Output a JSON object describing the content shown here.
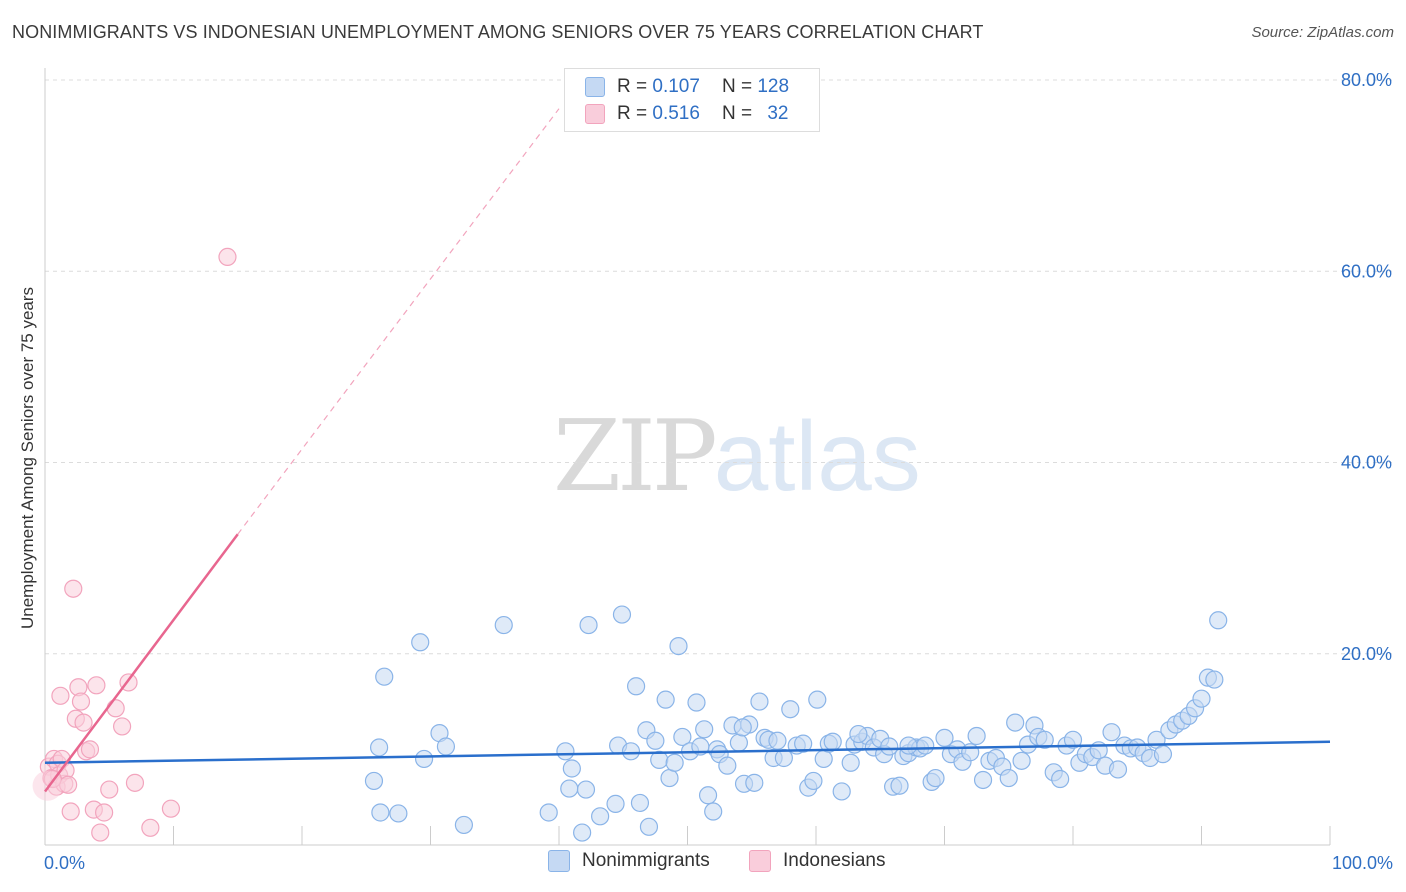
{
  "chart_data": {
    "type": "scatter",
    "title": "NONIMMIGRANTS VS INDONESIAN UNEMPLOYMENT AMONG SENIORS OVER 75 YEARS CORRELATION CHART",
    "source": "Source: ZipAtlas.com",
    "xlabel": "",
    "ylabel": "Unemployment Among Seniors over 75 years",
    "xlim": [
      0,
      100
    ],
    "ylim": [
      0,
      80
    ],
    "x_tick_labels": [
      {
        "value": 0,
        "label": "0.0%"
      },
      {
        "value": 100,
        "label": "100.0%"
      }
    ],
    "y_tick_labels": [
      {
        "value": 20,
        "label": "20.0%"
      },
      {
        "value": 40,
        "label": "40.0%"
      },
      {
        "value": 60,
        "label": "60.0%"
      },
      {
        "value": 80,
        "label": "80.0%"
      }
    ],
    "grid": "horizontal dashed",
    "watermark": {
      "part1": "ZIP",
      "part2": "atlas"
    },
    "legend": {
      "items": [
        {
          "r_label": "R =",
          "r_value": "0.107",
          "n_label": "N =",
          "n_value": "128"
        },
        {
          "r_label": "R =",
          "r_value": "0.516",
          "n_label": "N =",
          "n_value": "32"
        }
      ]
    },
    "series": [
      {
        "name": "Nonimmigrants",
        "color": "#8ab4e8",
        "fill": "#c5d9f3",
        "line_color": "#2a6fcc",
        "trend": {
          "x0": 0,
          "y0": 8.6,
          "x1": 100,
          "y1": 10.8
        },
        "points": [
          [
            25.6,
            6.7
          ],
          [
            26.0,
            10.2
          ],
          [
            26.1,
            3.4
          ],
          [
            26.4,
            17.6
          ],
          [
            27.5,
            3.3
          ],
          [
            29.2,
            21.2
          ],
          [
            29.5,
            9.0
          ],
          [
            30.7,
            11.7
          ],
          [
            31.2,
            10.3
          ],
          [
            32.6,
            2.1
          ],
          [
            35.7,
            23.0
          ],
          [
            39.2,
            3.4
          ],
          [
            40.5,
            9.8
          ],
          [
            40.8,
            5.9
          ],
          [
            41.0,
            8.0
          ],
          [
            41.8,
            1.3
          ],
          [
            42.1,
            5.8
          ],
          [
            42.3,
            23.0
          ],
          [
            43.2,
            3.0
          ],
          [
            44.4,
            4.3
          ],
          [
            44.6,
            10.4
          ],
          [
            44.9,
            24.1
          ],
          [
            45.6,
            9.8
          ],
          [
            46.0,
            16.6
          ],
          [
            46.3,
            4.4
          ],
          [
            46.8,
            12.0
          ],
          [
            47.0,
            1.9
          ],
          [
            47.5,
            10.9
          ],
          [
            47.8,
            8.9
          ],
          [
            48.3,
            15.2
          ],
          [
            48.6,
            7.0
          ],
          [
            49.0,
            8.6
          ],
          [
            49.3,
            20.8
          ],
          [
            49.6,
            11.3
          ],
          [
            50.2,
            9.8
          ],
          [
            50.7,
            14.9
          ],
          [
            51.0,
            10.3
          ],
          [
            51.3,
            12.1
          ],
          [
            51.6,
            5.2
          ],
          [
            52.0,
            3.5
          ],
          [
            52.3,
            10.0
          ],
          [
            52.5,
            9.5
          ],
          [
            53.1,
            8.3
          ],
          [
            53.5,
            12.5
          ],
          [
            54.0,
            10.7
          ],
          [
            54.4,
            6.4
          ],
          [
            54.8,
            12.6
          ],
          [
            55.2,
            6.5
          ],
          [
            55.6,
            15.0
          ],
          [
            56.0,
            11.2
          ],
          [
            56.3,
            11.0
          ],
          [
            56.7,
            9.1
          ],
          [
            57.0,
            10.9
          ],
          [
            57.5,
            9.1
          ],
          [
            58.0,
            14.2
          ],
          [
            58.5,
            10.4
          ],
          [
            59.0,
            10.6
          ],
          [
            59.4,
            6.0
          ],
          [
            59.8,
            6.7
          ],
          [
            60.1,
            15.2
          ],
          [
            60.6,
            9.0
          ],
          [
            61.0,
            10.6
          ],
          [
            61.3,
            10.8
          ],
          [
            62.0,
            5.6
          ],
          [
            62.7,
            8.6
          ],
          [
            63.0,
            10.5
          ],
          [
            63.6,
            10.8
          ],
          [
            64.0,
            11.4
          ],
          [
            64.5,
            10.2
          ],
          [
            65.0,
            11.1
          ],
          [
            65.3,
            9.5
          ],
          [
            65.7,
            10.3
          ],
          [
            66.0,
            6.1
          ],
          [
            66.5,
            6.2
          ],
          [
            66.8,
            9.3
          ],
          [
            67.2,
            9.6
          ],
          [
            67.8,
            10.2
          ],
          [
            68.1,
            10.1
          ],
          [
            68.5,
            10.4
          ],
          [
            69.0,
            6.6
          ],
          [
            69.3,
            7.0
          ],
          [
            70.0,
            11.2
          ],
          [
            70.5,
            9.5
          ],
          [
            71.0,
            10.0
          ],
          [
            71.4,
            8.7
          ],
          [
            72.0,
            9.7
          ],
          [
            72.5,
            11.4
          ],
          [
            73.0,
            6.8
          ],
          [
            73.5,
            8.8
          ],
          [
            74.0,
            9.1
          ],
          [
            74.5,
            8.2
          ],
          [
            75.0,
            7.0
          ],
          [
            75.5,
            12.8
          ],
          [
            76.0,
            8.8
          ],
          [
            76.5,
            10.5
          ],
          [
            77.0,
            12.5
          ],
          [
            77.3,
            11.3
          ],
          [
            77.8,
            11.0
          ],
          [
            78.5,
            7.6
          ],
          [
            79.0,
            6.9
          ],
          [
            79.5,
            10.4
          ],
          [
            80.0,
            11.0
          ],
          [
            80.5,
            8.6
          ],
          [
            81.0,
            9.5
          ],
          [
            81.5,
            9.2
          ],
          [
            82.0,
            9.9
          ],
          [
            82.5,
            8.3
          ],
          [
            83.0,
            11.8
          ],
          [
            83.5,
            7.9
          ],
          [
            84.0,
            10.4
          ],
          [
            84.5,
            10.1
          ],
          [
            85.0,
            10.2
          ],
          [
            85.5,
            9.6
          ],
          [
            86.0,
            9.1
          ],
          [
            86.5,
            11.0
          ],
          [
            87.0,
            9.5
          ],
          [
            87.5,
            12.0
          ],
          [
            88.0,
            12.6
          ],
          [
            88.5,
            13.0
          ],
          [
            89.0,
            13.5
          ],
          [
            89.5,
            14.3
          ],
          [
            90.0,
            15.3
          ],
          [
            90.5,
            17.5
          ],
          [
            91.0,
            17.3
          ],
          [
            91.3,
            23.5
          ],
          [
            63.3,
            11.6
          ],
          [
            67.2,
            10.4
          ],
          [
            54.3,
            12.3
          ]
        ]
      },
      {
        "name": "Indonesians",
        "color": "#f2a4bd",
        "fill": "#f9cddb",
        "line_color": "#e8668f",
        "trend": {
          "x0": 0,
          "y0": 5.6,
          "x1": 15,
          "y1": 32.5
        },
        "trend_dashed": {
          "x0": 15,
          "y0": 32.5,
          "x1": 40,
          "y1": 77
        },
        "points": [
          [
            0.3,
            8.2
          ],
          [
            0.5,
            7.0
          ],
          [
            0.7,
            9.0
          ],
          [
            0.9,
            6.1
          ],
          [
            1.0,
            8.5
          ],
          [
            1.1,
            7.3
          ],
          [
            1.3,
            9.0
          ],
          [
            1.5,
            6.4
          ],
          [
            1.6,
            7.8
          ],
          [
            1.8,
            6.3
          ],
          [
            2.0,
            3.5
          ],
          [
            2.2,
            26.8
          ],
          [
            2.4,
            13.2
          ],
          [
            2.6,
            16.5
          ],
          [
            2.8,
            15.0
          ],
          [
            3.0,
            12.8
          ],
          [
            3.2,
            9.8
          ],
          [
            3.5,
            10.0
          ],
          [
            3.8,
            3.7
          ],
          [
            4.0,
            16.7
          ],
          [
            4.3,
            1.3
          ],
          [
            4.6,
            3.4
          ],
          [
            5.0,
            5.8
          ],
          [
            5.5,
            14.3
          ],
          [
            6.0,
            12.4
          ],
          [
            6.5,
            17.0
          ],
          [
            7.0,
            6.5
          ],
          [
            8.2,
            1.8
          ],
          [
            9.8,
            3.8
          ],
          [
            14.2,
            61.5
          ],
          [
            1.2,
            15.6
          ],
          [
            0.6,
            6.9
          ]
        ]
      }
    ]
  }
}
